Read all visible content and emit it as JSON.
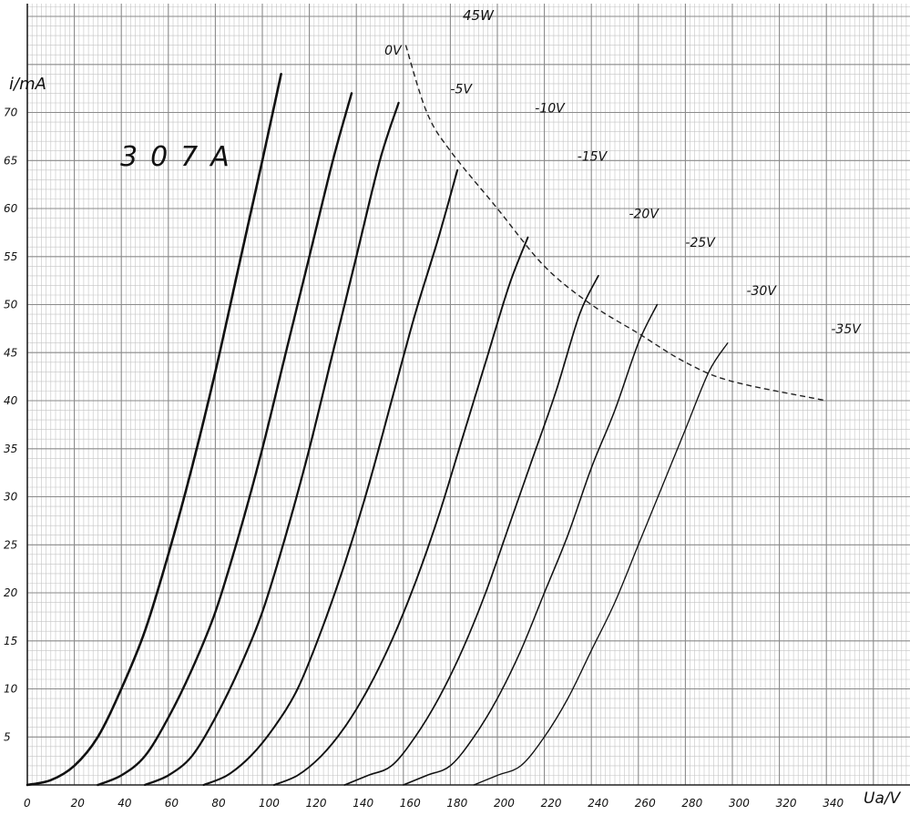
{
  "chart_data": {
    "type": "line",
    "title": "307A",
    "xlabel": "Ua/V",
    "ylabel": "i/mA",
    "xlim": [
      0,
      360
    ],
    "ylim": [
      0,
      77
    ],
    "x_ticks": [
      "0",
      "20",
      "40",
      "60",
      "80",
      "100",
      "120",
      "140",
      "160",
      "180",
      "200",
      "220",
      "240",
      "260",
      "280",
      "300",
      "320",
      "340"
    ],
    "y_ticks": [
      "5",
      "10",
      "15",
      "20",
      "25",
      "30",
      "35",
      "40",
      "45",
      "50",
      "55",
      "60",
      "65",
      "70"
    ],
    "grid": true,
    "colors": {
      "paper": "#ffffff",
      "grid_major": "#8a8a8a",
      "grid_minor": "#c4c4c4",
      "curve": "#111111"
    },
    "series": [
      {
        "name": "0V",
        "label_pos": [
          152,
          76
        ],
        "points": [
          [
            0,
            0
          ],
          [
            10,
            0.5
          ],
          [
            20,
            2
          ],
          [
            30,
            5
          ],
          [
            40,
            10
          ],
          [
            50,
            16
          ],
          [
            60,
            24
          ],
          [
            70,
            33
          ],
          [
            80,
            43
          ],
          [
            90,
            54
          ],
          [
            100,
            65
          ],
          [
            108,
            74
          ]
        ]
      },
      {
        "name": "-5V",
        "label_pos": [
          180,
          72
        ],
        "points": [
          [
            30,
            0
          ],
          [
            40,
            1
          ],
          [
            50,
            3
          ],
          [
            60,
            7
          ],
          [
            70,
            12
          ],
          [
            80,
            18
          ],
          [
            90,
            26
          ],
          [
            100,
            35
          ],
          [
            110,
            45
          ],
          [
            120,
            55
          ],
          [
            130,
            65
          ],
          [
            138,
            72
          ]
        ]
      },
      {
        "name": "-10V",
        "label_pos": [
          216,
          70
        ],
        "points": [
          [
            50,
            0
          ],
          [
            60,
            1
          ],
          [
            70,
            3
          ],
          [
            80,
            7
          ],
          [
            90,
            12
          ],
          [
            100,
            18
          ],
          [
            110,
            26
          ],
          [
            120,
            35
          ],
          [
            130,
            45
          ],
          [
            140,
            55
          ],
          [
            150,
            65
          ],
          [
            158,
            71
          ]
        ]
      },
      {
        "name": "-15V",
        "label_pos": [
          234,
          65
        ],
        "points": [
          [
            75,
            0
          ],
          [
            85,
            1
          ],
          [
            95,
            3
          ],
          [
            105,
            6
          ],
          [
            115,
            10
          ],
          [
            125,
            16
          ],
          [
            135,
            23
          ],
          [
            145,
            31
          ],
          [
            155,
            40
          ],
          [
            165,
            49
          ],
          [
            175,
            57
          ],
          [
            183,
            64
          ]
        ]
      },
      {
        "name": "-20V",
        "label_pos": [
          256,
          59
        ],
        "points": [
          [
            105,
            0
          ],
          [
            115,
            1
          ],
          [
            125,
            3
          ],
          [
            135,
            6
          ],
          [
            145,
            10
          ],
          [
            155,
            15
          ],
          [
            165,
            21
          ],
          [
            175,
            28
          ],
          [
            185,
            36
          ],
          [
            195,
            44
          ],
          [
            205,
            52
          ],
          [
            213,
            57
          ]
        ]
      },
      {
        "name": "-25V",
        "label_pos": [
          280,
          56
        ],
        "points": [
          [
            135,
            0
          ],
          [
            145,
            1
          ],
          [
            155,
            2
          ],
          [
            165,
            5
          ],
          [
            175,
            9
          ],
          [
            185,
            14
          ],
          [
            195,
            20
          ],
          [
            205,
            27
          ],
          [
            215,
            34
          ],
          [
            225,
            41
          ],
          [
            235,
            49
          ],
          [
            243,
            53
          ]
        ]
      },
      {
        "name": "-30V",
        "label_pos": [
          306,
          51
        ],
        "points": [
          [
            160,
            0
          ],
          [
            170,
            1
          ],
          [
            180,
            2
          ],
          [
            190,
            5
          ],
          [
            200,
            9
          ],
          [
            210,
            14
          ],
          [
            220,
            20
          ],
          [
            230,
            26
          ],
          [
            240,
            33
          ],
          [
            250,
            39
          ],
          [
            260,
            46
          ],
          [
            268,
            50
          ]
        ]
      },
      {
        "name": "-35V",
        "label_pos": [
          342,
          47
        ],
        "points": [
          [
            190,
            0
          ],
          [
            200,
            1
          ],
          [
            210,
            2
          ],
          [
            220,
            5
          ],
          [
            230,
            9
          ],
          [
            240,
            14
          ],
          [
            250,
            19
          ],
          [
            260,
            25
          ],
          [
            270,
            31
          ],
          [
            280,
            37
          ],
          [
            290,
            43
          ],
          [
            298,
            46
          ]
        ]
      }
    ],
    "dissipation_label": "45W",
    "dissipation_curve": [
      [
        161,
        77
      ],
      [
        170,
        70
      ],
      [
        180,
        66
      ],
      [
        200,
        60
      ],
      [
        220,
        54
      ],
      [
        240,
        50
      ],
      [
        260,
        47
      ],
      [
        280,
        44
      ],
      [
        300,
        42
      ],
      [
        340,
        40
      ]
    ]
  }
}
